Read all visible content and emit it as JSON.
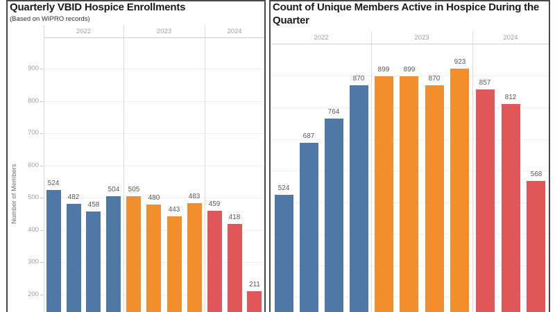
{
  "chart_data": [
    {
      "type": "bar",
      "title": "Quarterly VBID Hospice Enrollments",
      "subtitle": "(Based on WIPRO records)",
      "ylabel": "Number of Members",
      "y_ticks": [
        200,
        300,
        400,
        500,
        600,
        700,
        800,
        900
      ],
      "show_tick_labels": true,
      "grid": true,
      "ylim_visible": [
        140,
        960
      ],
      "groups": [
        {
          "year": "2022",
          "color": "#4e79a7",
          "values": [
            524,
            482,
            458,
            504
          ]
        },
        {
          "year": "2023",
          "color": "#f28e2b",
          "values": [
            505,
            480,
            443,
            483
          ]
        },
        {
          "year": "2024",
          "color": "#e15759",
          "values": [
            459,
            418,
            211
          ]
        }
      ]
    },
    {
      "type": "bar",
      "title": "Count of Unique Members Active in Hospice During the Quarter",
      "subtitle": "",
      "ylabel": "",
      "y_ticks": [
        200,
        300,
        400,
        500,
        600,
        700,
        800,
        900
      ],
      "show_tick_labels": false,
      "grid": true,
      "ylim_visible": [
        150,
        960
      ],
      "groups": [
        {
          "year": "2022",
          "color": "#4e79a7",
          "values": [
            524,
            687,
            764,
            870
          ]
        },
        {
          "year": "2023",
          "color": "#f28e2b",
          "values": [
            899,
            899,
            870,
            923
          ]
        },
        {
          "year": "2024",
          "color": "#e15759",
          "values": [
            857,
            812,
            568
          ]
        }
      ]
    }
  ]
}
